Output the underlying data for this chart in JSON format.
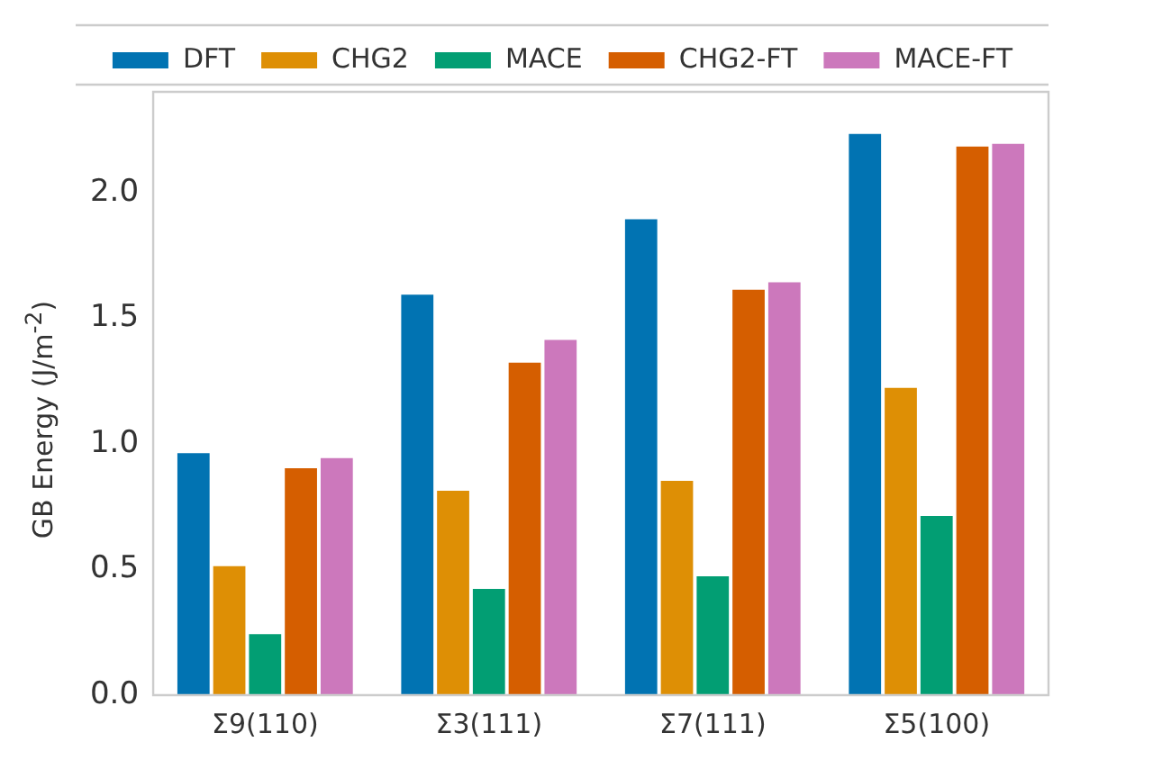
{
  "chart_data": {
    "type": "bar",
    "ylabel": "GB Energy (J/m$^{-2}$)",
    "categories": [
      "Σ9(110)",
      "Σ3(111)",
      "Σ7(111)",
      "Σ5(100)"
    ],
    "series": [
      {
        "name": "DFT",
        "color": "#0173b2",
        "values": [
          0.97,
          1.6,
          1.9,
          2.24
        ]
      },
      {
        "name": "CHG2",
        "color": "#de8f05",
        "values": [
          0.52,
          0.82,
          0.86,
          1.23
        ]
      },
      {
        "name": "MACE",
        "color": "#029e73",
        "values": [
          0.25,
          0.43,
          0.48,
          0.72
        ]
      },
      {
        "name": "CHG2-FT",
        "color": "#d55e00",
        "values": [
          0.91,
          1.33,
          1.62,
          2.19
        ]
      },
      {
        "name": "MACE-FT",
        "color": "#cc78bc",
        "values": [
          0.95,
          1.42,
          1.65,
          2.2
        ]
      }
    ],
    "ylim": [
      0,
      2.4
    ],
    "yticks": [
      {
        "value": 0,
        "label": "0.0"
      },
      0.5,
      {
        "value": 1,
        "label": "1.0"
      },
      1.5,
      {
        "value": 2,
        "label": "2.0"
      }
    ],
    "grid": false,
    "legend": "top"
  }
}
